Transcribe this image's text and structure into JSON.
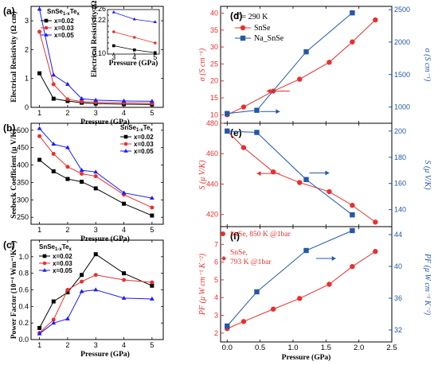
{
  "chart_data": [
    {
      "panel": "(a)",
      "type": "line",
      "xlabel": "Pressure (GPa)",
      "ylabel": "Electrical Resistivity (Ω cm)",
      "xlim": [
        0.7,
        5.4
      ],
      "ylim": [
        0,
        3.5
      ],
      "xticks": [
        1,
        2,
        3,
        4,
        5
      ],
      "yticks": [
        0,
        1,
        2,
        3
      ],
      "legend_title": "SnSe",
      "legend_sub": "1-x",
      "legend_title2": "Te",
      "legend_sub2": "x",
      "series": [
        {
          "name": "x=0.02",
          "color": "#000000",
          "marker": "square",
          "x": [
            1,
            1.5,
            2,
            2.5,
            3,
            4,
            5
          ],
          "y": [
            1.18,
            0.3,
            0.22,
            0.16,
            0.13,
            0.11,
            0.1
          ]
        },
        {
          "name": "x=0.03",
          "color": "#e8302e",
          "marker": "circle",
          "x": [
            1,
            1.5,
            2,
            2.5,
            3,
            4,
            5
          ],
          "y": [
            2.62,
            0.8,
            0.28,
            0.2,
            0.18,
            0.16,
            0.14
          ]
        },
        {
          "name": "x=0.05",
          "color": "#1a1aff",
          "marker": "triangle",
          "x": [
            1,
            1.5,
            2,
            2.5,
            3,
            4,
            5
          ],
          "y": [
            3.4,
            1.12,
            0.8,
            0.3,
            0.25,
            0.22,
            0.21
          ]
        }
      ],
      "inset": {
        "xlabel": "Pressure (GPa)",
        "ylabel": "Electrical Resistivity (Ω cm)",
        "xlim": [
          2.7,
          5.2
        ],
        "ylim": [
          0.1,
          0.26
        ],
        "xticks": [
          3,
          4,
          5
        ],
        "yticks": [
          0.1,
          0.12,
          0.14,
          0.16,
          0.18,
          0.2,
          0.22,
          0.24,
          0.26
        ],
        "ytick_labels": [
          "0.10",
          "",
          "",
          "",
          "",
          "",
          "0.22",
          "",
          "0.26"
        ],
        "series": [
          {
            "color": "#000000",
            "marker": "square",
            "x": [
              3,
              4,
              5
            ],
            "y": [
              0.13,
              0.115,
              0.105
            ]
          },
          {
            "color": "#e8302e",
            "marker": "circle",
            "x": [
              3,
              4,
              5
            ],
            "y": [
              0.18,
              0.16,
              0.14
            ]
          },
          {
            "color": "#1a1aff",
            "marker": "triangle",
            "x": [
              3,
              4,
              5
            ],
            "y": [
              0.25,
              0.225,
              0.215
            ]
          }
        ]
      }
    },
    {
      "panel": "(b)",
      "type": "line",
      "xlabel": "Pressure (GPa)",
      "ylabel": "Seebeck Coefficient (μ V/K)",
      "xlim": [
        0.7,
        5.4
      ],
      "ylim": [
        230,
        520
      ],
      "xticks": [
        1,
        2,
        3,
        4,
        5
      ],
      "yticks": [
        250,
        300,
        350,
        400,
        450,
        500
      ],
      "legend_title": "SnSe",
      "legend_sub": "1-x",
      "legend_title2": "Te",
      "legend_sub2": "x",
      "series": [
        {
          "name": "x=0.02",
          "color": "#000000",
          "marker": "square",
          "x": [
            1,
            1.5,
            2,
            2.5,
            3,
            4,
            5
          ],
          "y": [
            415,
            382,
            360,
            352,
            333,
            289,
            255
          ]
        },
        {
          "name": "x=0.03",
          "color": "#e8302e",
          "marker": "circle",
          "x": [
            1,
            1.5,
            2,
            2.5,
            3,
            4,
            5
          ],
          "y": [
            483,
            432,
            395,
            375,
            368,
            315,
            278
          ]
        },
        {
          "name": "x=0.05",
          "color": "#1a1aff",
          "marker": "triangle",
          "x": [
            1,
            1.5,
            2,
            2.5,
            3,
            4,
            5
          ],
          "y": [
            505,
            460,
            450,
            385,
            380,
            320,
            305
          ]
        }
      ]
    },
    {
      "panel": "(c)",
      "type": "line",
      "xlabel": "Pressure (GPa)",
      "ylabel": "Power Factor (10⁻⁴ Wm⁻¹K⁻²)",
      "xlim": [
        0.7,
        5.4
      ],
      "ylim": [
        0,
        1.2
      ],
      "xticks": [
        1,
        2,
        3,
        4,
        5
      ],
      "yticks": [
        0.0,
        0.2,
        0.4,
        0.6,
        0.8,
        1.0
      ],
      "ytick_labels": [
        "0.0",
        "0.2",
        "0.4",
        "0.6",
        "0.8",
        "1.0"
      ],
      "legend_title": "SnSe",
      "legend_sub": "1-x",
      "legend_title2": "Te",
      "legend_sub2": "x",
      "series": [
        {
          "name": "x=0.02",
          "color": "#000000",
          "marker": "square",
          "x": [
            1,
            1.5,
            2,
            2.5,
            3,
            4,
            5
          ],
          "y": [
            0.14,
            0.46,
            0.57,
            0.78,
            1.03,
            0.8,
            0.65
          ]
        },
        {
          "name": "x=0.03",
          "color": "#e8302e",
          "marker": "circle",
          "x": [
            1,
            1.5,
            2,
            2.5,
            3,
            4,
            5
          ],
          "y": [
            0.08,
            0.24,
            0.6,
            0.7,
            0.78,
            0.72,
            0.69
          ]
        },
        {
          "name": "x=0.05",
          "color": "#1a1aff",
          "marker": "triangle",
          "x": [
            1,
            1.5,
            2,
            2.5,
            3,
            4,
            5
          ],
          "y": [
            0.07,
            0.2,
            0.25,
            0.58,
            0.6,
            0.5,
            0.49
          ]
        }
      ]
    },
    {
      "panel": "(d)",
      "type": "line",
      "annotation": "T = 290 K",
      "xlim": [
        -0.1,
        2.5
      ],
      "ylim_left": [
        7.5,
        42
      ],
      "ylim_right": [
        750,
        2550
      ],
      "yticks_left": [
        10,
        15,
        20,
        25,
        30,
        35,
        40
      ],
      "yticks_right": [
        1000,
        1500,
        2000,
        2500
      ],
      "ylabel_left": "σ (S cm⁻¹)",
      "ylabel_right": "σ (S cm⁻¹)",
      "series": [
        {
          "name": "SnSe",
          "color": "#e8302e",
          "marker": "circle",
          "axis": "left",
          "x": [
            0,
            0.25,
            0.7,
            1.1,
            1.55,
            1.9,
            2.25
          ],
          "y": [
            10,
            12.3,
            17,
            20.5,
            25.5,
            31.5,
            38
          ]
        },
        {
          "name": "Na_SnSe",
          "color": "#2457a8",
          "marker": "square",
          "axis": "right",
          "x": [
            0,
            0.45,
            1.2,
            1.9
          ],
          "y": [
            900,
            950,
            1850,
            2450
          ]
        }
      ]
    },
    {
      "panel": "(e)",
      "type": "line",
      "xlim": [
        -0.1,
        2.5
      ],
      "ylim_left": [
        412,
        480
      ],
      "ylim_right": [
        127,
        206
      ],
      "yticks_left": [
        420,
        440,
        460,
        480
      ],
      "yticks_right": [
        140,
        160,
        180,
        200
      ],
      "ylabel_left": "S (μ V/K)",
      "ylabel_right": "S (μ V/K)",
      "series": [
        {
          "name": "SnSe",
          "color": "#e8302e",
          "marker": "circle",
          "axis": "left",
          "x": [
            0,
            0.25,
            0.7,
            1.1,
            1.55,
            1.9,
            2.25
          ],
          "y": [
            475,
            464,
            448,
            441,
            435,
            426,
            415
          ]
        },
        {
          "name": "Na_SnSe",
          "color": "#2457a8",
          "marker": "square",
          "axis": "right",
          "x": [
            0,
            0.45,
            1.2,
            1.9
          ],
          "y": [
            200,
            199,
            163,
            136
          ]
        }
      ]
    },
    {
      "panel": "(f)",
      "type": "line",
      "xlabel": "Pressure (GPa)",
      "xlim": [
        -0.1,
        2.5
      ],
      "xticks": [
        0.0,
        0.5,
        1.0,
        1.5,
        2.0,
        2.5
      ],
      "xtick_labels": [
        "0.0",
        "0.5",
        "1.0",
        "1.5",
        "2.0",
        "2.5"
      ],
      "ylim_left": [
        1.5,
        8
      ],
      "ylim_right": [
        30.5,
        45
      ],
      "yticks_left": [
        2,
        3,
        4,
        5,
        6,
        7
      ],
      "yticks_right": [
        32,
        36,
        40,
        44
      ],
      "ylabel_left": "PF (μ W cm⁻¹ K⁻²)",
      "ylabel_right": "PF (μ W cm⁻¹ K⁻²)",
      "annotations": [
        "SnSe, 850 K @1bar",
        "SnSe,",
        "793 K @1bar"
      ],
      "series": [
        {
          "name": "SnSe",
          "color": "#e8302e",
          "marker": "circle",
          "axis": "left",
          "x": [
            0,
            0.25,
            0.7,
            1.1,
            1.55,
            1.9,
            2.25
          ],
          "y": [
            2.25,
            2.65,
            3.35,
            3.95,
            4.75,
            5.75,
            6.6
          ]
        },
        {
          "name": "Na_SnSe",
          "color": "#2457a8",
          "marker": "square",
          "axis": "right",
          "x": [
            0,
            0.45,
            1.2,
            1.9
          ],
          "y": [
            32.5,
            36.8,
            42,
            44.5
          ]
        }
      ]
    }
  ]
}
